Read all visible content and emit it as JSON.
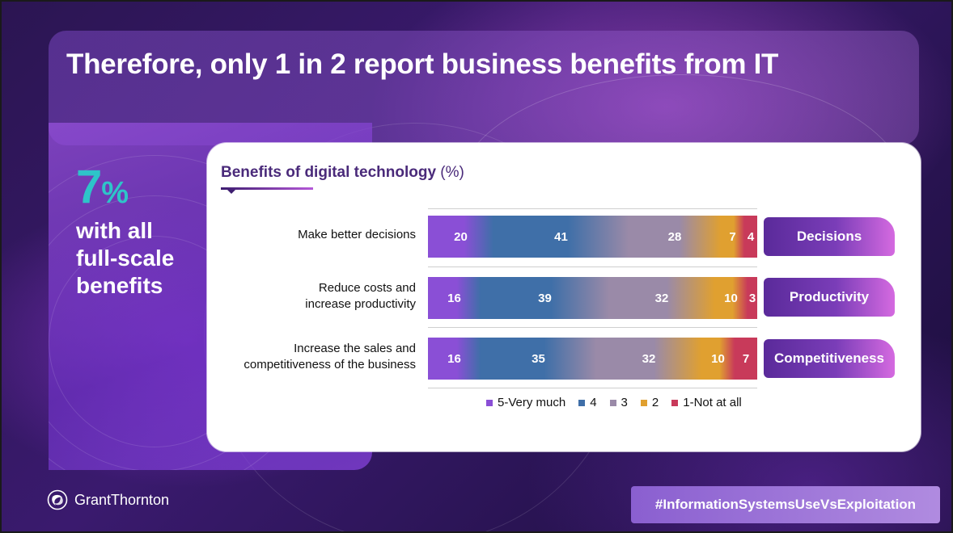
{
  "slide": {
    "title": "Therefore, only 1 in 2 report business benefits from IT"
  },
  "kpi": {
    "value": "7",
    "unit": "%",
    "lines": [
      "with all",
      "full-scale",
      "benefits"
    ]
  },
  "chart_data": {
    "type": "bar",
    "orientation": "horizontal",
    "stacked": true,
    "title": "Benefits of digital technology",
    "title_unit": "(%)",
    "categories": [
      "Make better decisions",
      "Reduce costs and increase productivity",
      "Increase the sales and competitiveness of the business"
    ],
    "category_lines": [
      [
        "Make better decisions"
      ],
      [
        "Reduce costs and",
        "increase productivity"
      ],
      [
        "Increase the sales and",
        "competitiveness of the business"
      ]
    ],
    "category_tags": [
      "Decisions",
      "Productivity",
      "Competitiveness"
    ],
    "series": [
      {
        "name": "5-Very much",
        "values": [
          20,
          16,
          16
        ],
        "color": "#8a4fd6"
      },
      {
        "name": "4",
        "values": [
          41,
          39,
          35
        ],
        "color": "#3f6fa8"
      },
      {
        "name": "3",
        "values": [
          28,
          32,
          32
        ],
        "color": "#9a8aa8"
      },
      {
        "name": "2",
        "values": [
          7,
          10,
          10
        ],
        "color": "#e0a030"
      },
      {
        "name": "1-Not at all",
        "values": [
          4,
          3,
          7
        ],
        "color": "#c83a5a"
      }
    ],
    "data_labels": true,
    "legend_position": "bottom"
  },
  "footer": {
    "logo_text": "GrantThornton",
    "logo_icon": "grant-thornton-logo-icon",
    "hashtag": "#InformationSystemsUseVsExploitation"
  }
}
